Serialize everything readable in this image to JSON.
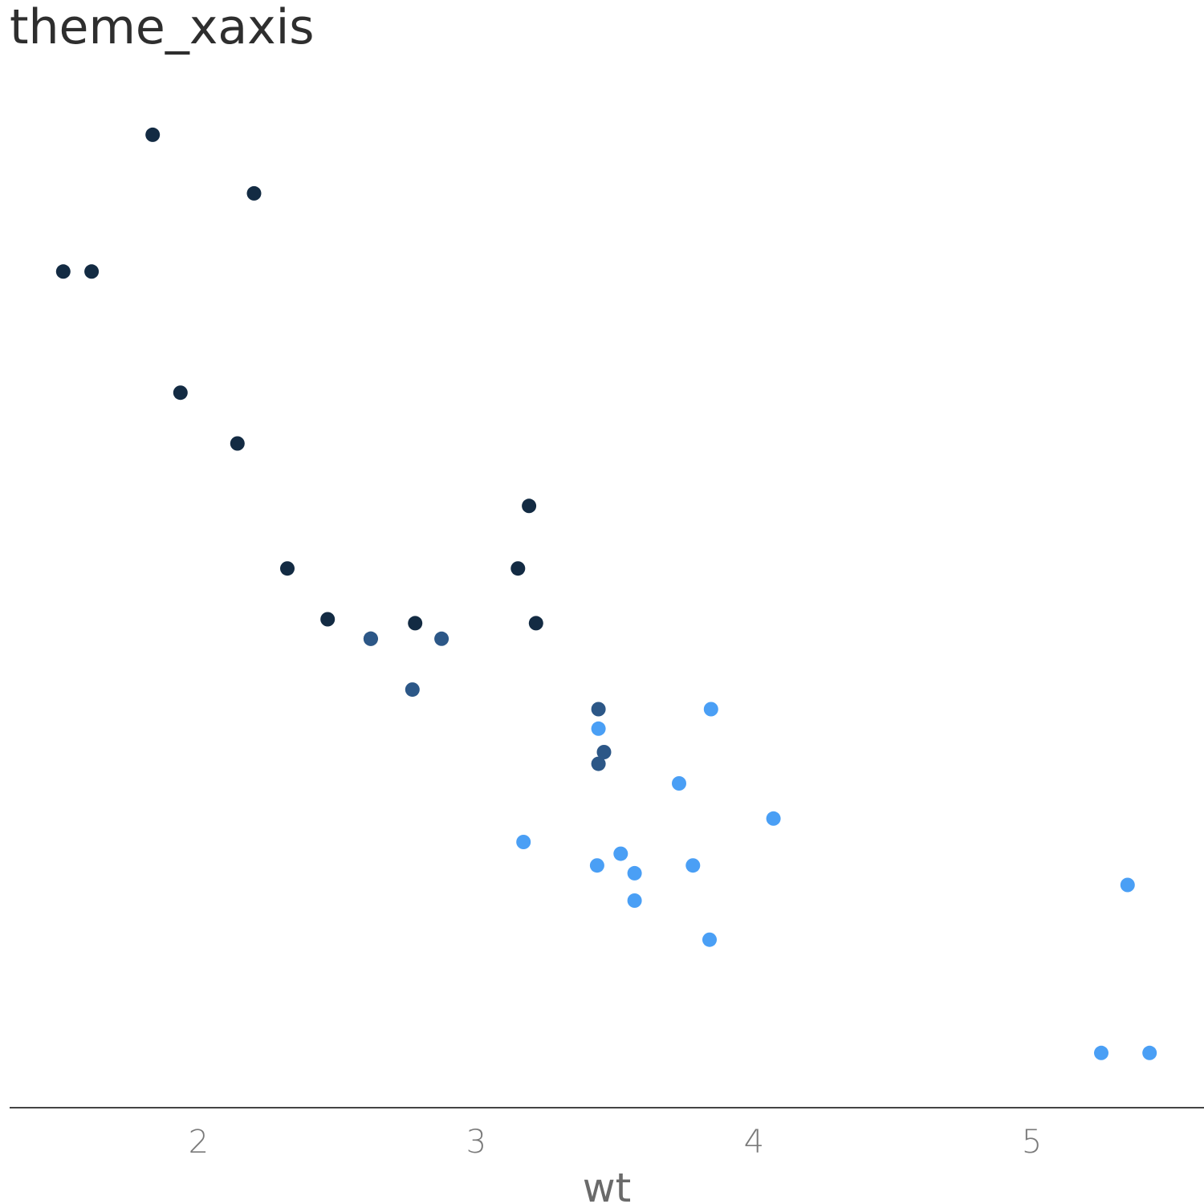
{
  "chart_data": {
    "type": "scatter",
    "title": "theme_xaxis",
    "xlabel": "wt",
    "ylabel": "",
    "xlim": [
      1.32,
      5.62
    ],
    "ylim": [
      9.0,
      35.5
    ],
    "x_ticks": [
      2,
      3,
      4,
      5
    ],
    "x_tick_labels": [
      "2",
      "3",
      "4",
      "5"
    ],
    "grid": false,
    "legend": "none",
    "series": [
      {
        "color": "#132b43",
        "points": [
          {
            "x": 2.62,
            "y": 21.0
          },
          {
            "x": 2.32,
            "y": 22.8
          },
          {
            "x": 3.215,
            "y": 21.4
          },
          {
            "x": 3.19,
            "y": 24.4
          },
          {
            "x": 3.15,
            "y": 22.8
          },
          {
            "x": 2.2,
            "y": 32.4
          },
          {
            "x": 1.615,
            "y": 30.4
          },
          {
            "x": 1.835,
            "y": 33.9
          },
          {
            "x": 2.465,
            "y": 21.5
          },
          {
            "x": 1.935,
            "y": 27.3
          },
          {
            "x": 2.14,
            "y": 26.0
          },
          {
            "x": 1.513,
            "y": 30.4
          },
          {
            "x": 2.78,
            "y": 21.4
          }
        ]
      },
      {
        "color": "#2c5787",
        "points": [
          {
            "x": 2.875,
            "y": 21.0
          },
          {
            "x": 3.44,
            "y": 19.2
          },
          {
            "x": 3.44,
            "y": 17.8
          },
          {
            "x": 2.77,
            "y": 19.7
          },
          {
            "x": 3.46,
            "y": 18.1
          },
          {
            "x": 2.62,
            "y": 21.0
          }
        ]
      },
      {
        "color": "#4a9ff5",
        "points": [
          {
            "x": 3.44,
            "y": 18.7
          },
          {
            "x": 3.57,
            "y": 14.3
          },
          {
            "x": 4.07,
            "y": 16.4
          },
          {
            "x": 3.73,
            "y": 17.3
          },
          {
            "x": 3.78,
            "y": 15.2
          },
          {
            "x": 5.25,
            "y": 10.4
          },
          {
            "x": 5.424,
            "y": 10.4
          },
          {
            "x": 5.345,
            "y": 14.7
          },
          {
            "x": 3.52,
            "y": 15.5
          },
          {
            "x": 3.435,
            "y": 15.2
          },
          {
            "x": 3.84,
            "y": 13.3
          },
          {
            "x": 3.845,
            "y": 19.2
          },
          {
            "x": 3.17,
            "y": 15.8
          },
          {
            "x": 3.57,
            "y": 15.0
          }
        ]
      }
    ]
  }
}
